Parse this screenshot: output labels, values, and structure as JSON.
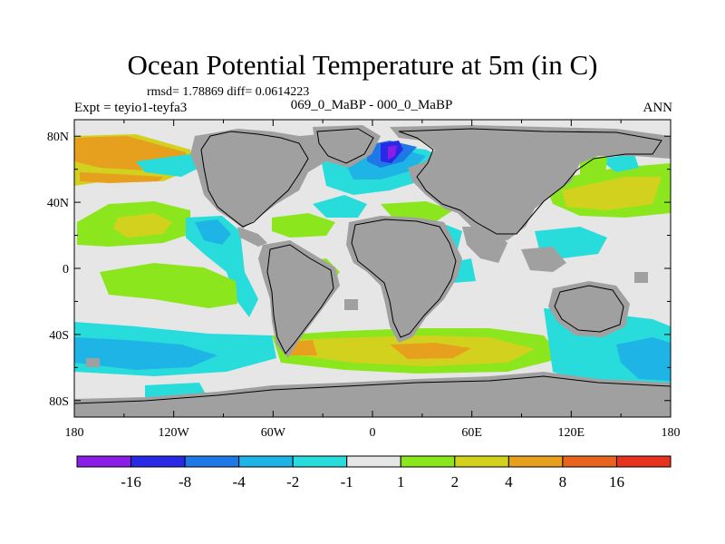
{
  "figure": {
    "title": "Ocean Potential Temperature at 5m (in C)",
    "stats_text": "rmsd= 1.78869 diff= 0.0614223",
    "experiment_text": "Expt = teyio1-teyfa3",
    "period_text": "069_0_MaBP - 000_0_MaBP",
    "season_text": "ANN"
  },
  "axes": {
    "x_tick_labels": [
      "180",
      "120W",
      "60W",
      "0",
      "60E",
      "120E",
      "180"
    ],
    "x_tick_values": [
      -180,
      -120,
      -60,
      0,
      60,
      120,
      180
    ],
    "y_tick_labels": [
      "80N",
      "40N",
      "0",
      "40S",
      "80S"
    ],
    "y_tick_values": [
      80,
      40,
      0,
      -40,
      -80
    ],
    "lon_range": [
      -180,
      180
    ],
    "lat_range": [
      -90,
      90
    ]
  },
  "colorbar": {
    "labels": [
      "-16",
      "-8",
      "-4",
      "-2",
      "-1",
      "1",
      "2",
      "4",
      "8",
      "16"
    ],
    "colors": [
      "#8a1ee6",
      "#2a2ae6",
      "#1e78e6",
      "#1eb4e6",
      "#28dcdc",
      "#e6e6e6",
      "#8ce61e",
      "#d2d21e",
      "#e6a01e",
      "#e6641e",
      "#e6321e"
    ]
  },
  "colors": {
    "land": "#a0a0a0",
    "neutral": "#e6e6e6",
    "coast": "#000000"
  }
}
